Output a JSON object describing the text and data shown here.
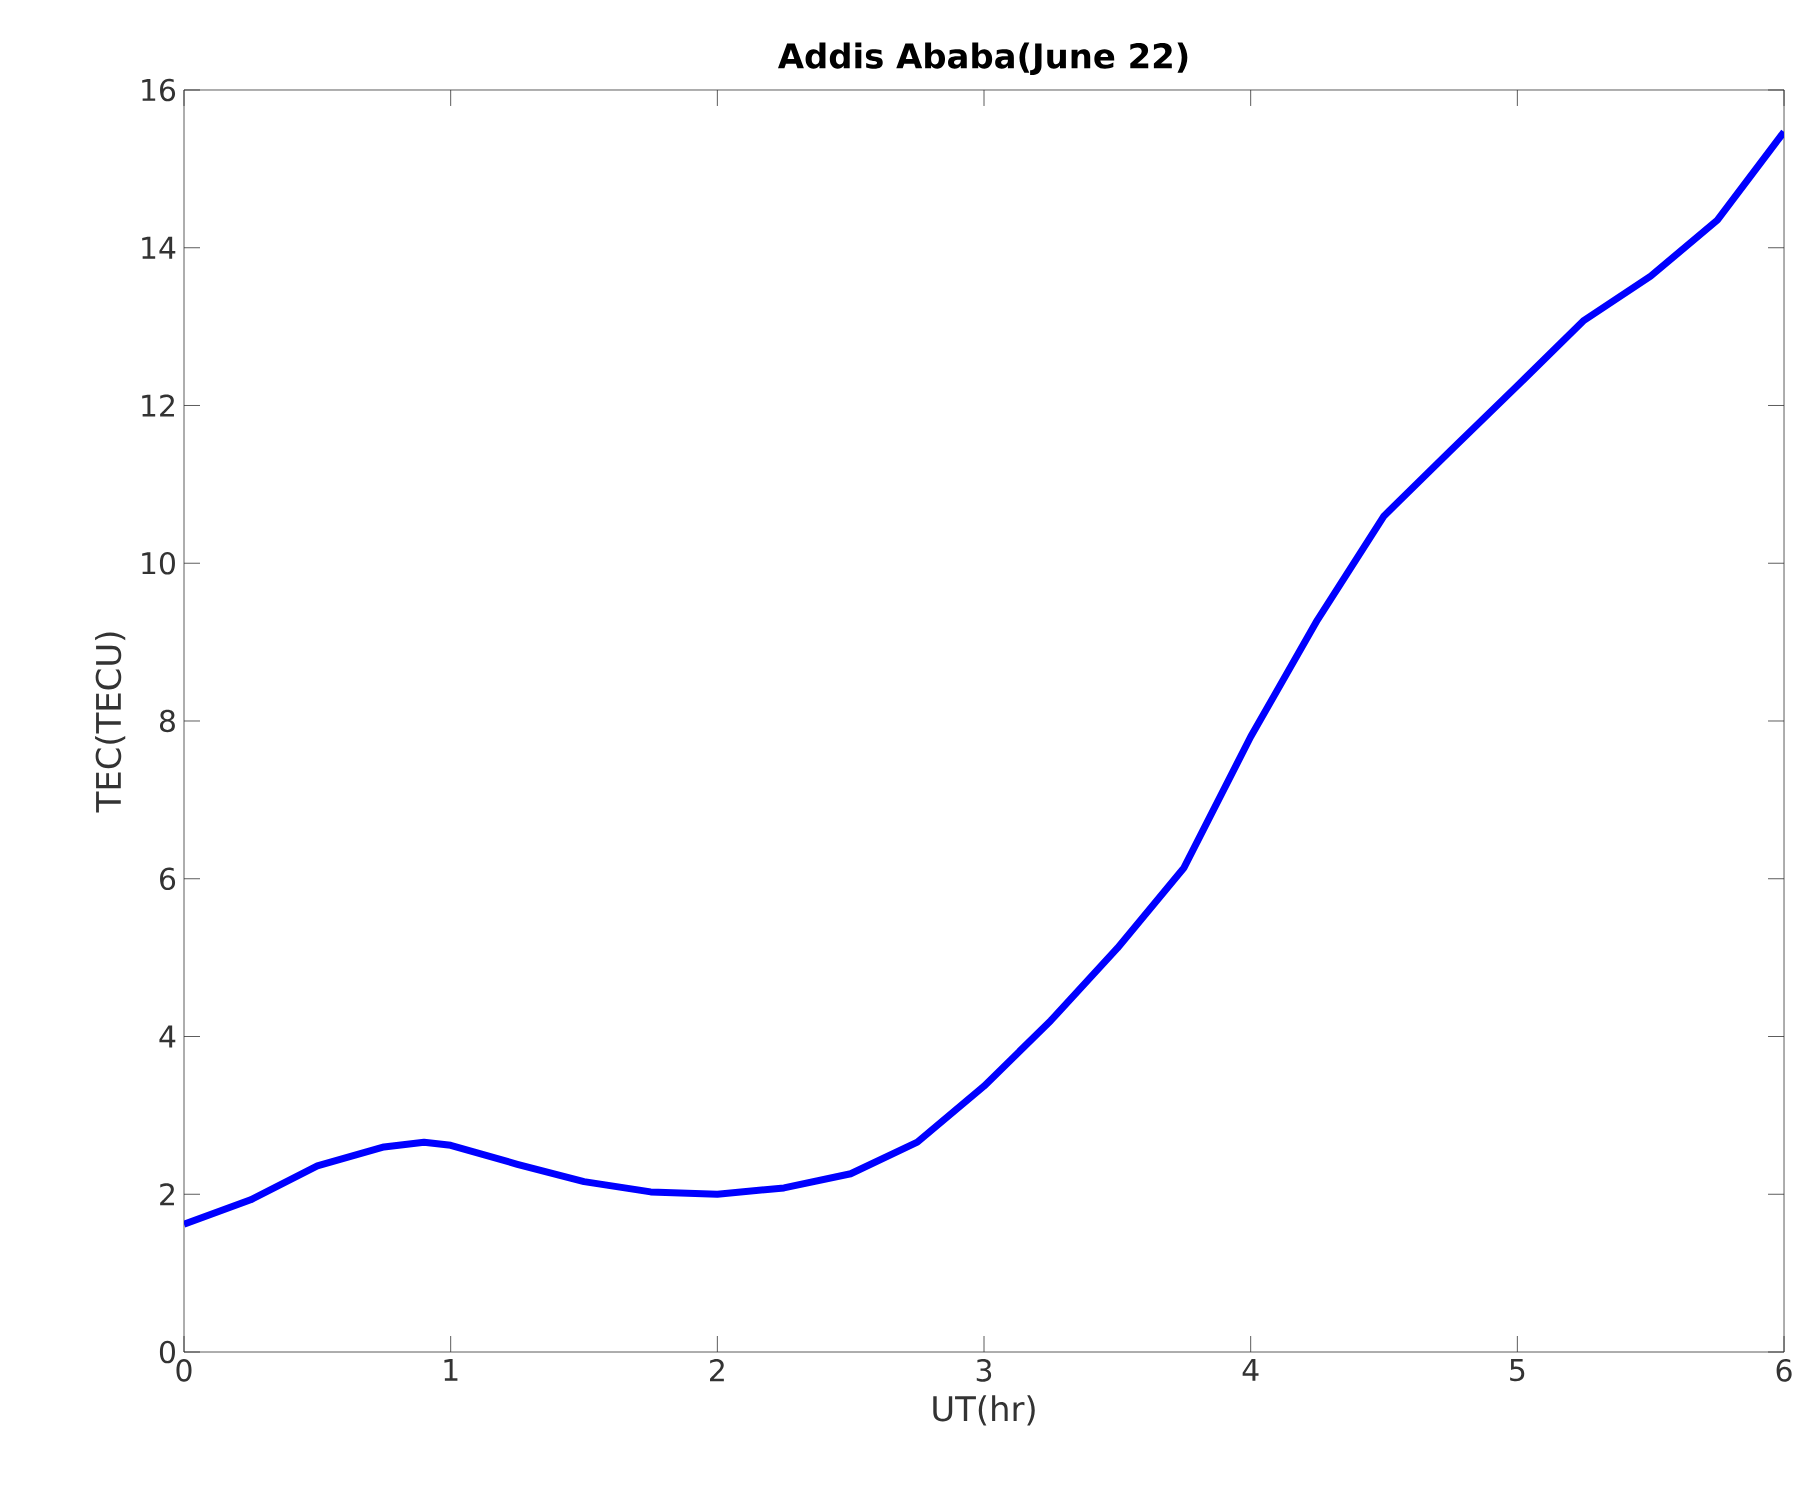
{
  "chart_data": {
    "type": "line",
    "title": "Addis Ababa(June 22)",
    "xlabel": "UT(hr)",
    "ylabel": "TEC(TECU)",
    "x": [
      0,
      0.25,
      0.5,
      0.75,
      0.9,
      1.0,
      1.25,
      1.5,
      1.75,
      2.0,
      2.25,
      2.5,
      2.75,
      3.0,
      3.25,
      3.5,
      3.75,
      4.0,
      4.25,
      4.5,
      4.75,
      5.0,
      5.25,
      5.5,
      5.75,
      6.0
    ],
    "series": [
      {
        "color": "#0000ff",
        "line_style": "solid",
        "values": [
          1.62,
          1.93,
          2.36,
          2.6,
          2.66,
          2.62,
          2.38,
          2.16,
          2.03,
          2.0,
          2.08,
          2.26,
          2.66,
          3.37,
          4.2,
          5.12,
          6.14,
          7.8,
          9.28,
          10.6,
          11.43,
          12.25,
          13.08,
          13.64,
          14.35,
          15.47
        ]
      }
    ],
    "xlim": [
      0,
      6
    ],
    "ylim": [
      0,
      16
    ],
    "xticks": [
      0,
      1,
      2,
      3,
      4,
      5,
      6
    ],
    "yticks": [
      0,
      2,
      4,
      6,
      8,
      10,
      12,
      14,
      16
    ]
  }
}
